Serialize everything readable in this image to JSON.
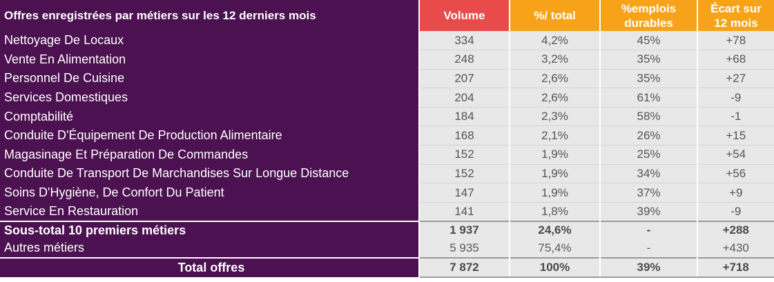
{
  "header": {
    "title": "Offres enregistrées par métiers sur les 12 derniers mois",
    "col_volume": "Volume",
    "col_pct_total": "%/ total",
    "col_durables_line1": "%emplois",
    "col_durables_line2": "durables",
    "col_ecart_line1": "Écart sur",
    "col_ecart_line2": "12 mois"
  },
  "rows": [
    {
      "metier": "Nettoyage De Locaux",
      "volume": "334",
      "pct_total": "4,2%",
      "durables": "45%",
      "ecart": "+78"
    },
    {
      "metier": "Vente En Alimentation",
      "volume": "248",
      "pct_total": "3,2%",
      "durables": "35%",
      "ecart": "+68"
    },
    {
      "metier": "Personnel De Cuisine",
      "volume": "207",
      "pct_total": "2,6%",
      "durables": "35%",
      "ecart": "+27"
    },
    {
      "metier": "Services Domestiques",
      "volume": "204",
      "pct_total": "2,6%",
      "durables": "61%",
      "ecart": "-9"
    },
    {
      "metier": "Comptabilité",
      "volume": "184",
      "pct_total": "2,3%",
      "durables": "58%",
      "ecart": "-1"
    },
    {
      "metier": "Conduite D'Équipement De Production Alimentaire",
      "volume": "168",
      "pct_total": "2,1%",
      "durables": "26%",
      "ecart": "+15"
    },
    {
      "metier": "Magasinage Et Préparation De Commandes",
      "volume": "152",
      "pct_total": "1,9%",
      "durables": "25%",
      "ecart": "+54"
    },
    {
      "metier": "Conduite De Transport De Marchandises Sur Longue Distance",
      "volume": "152",
      "pct_total": "1,9%",
      "durables": "34%",
      "ecart": "+56"
    },
    {
      "metier": "Soins D'Hygiène, De Confort Du Patient",
      "volume": "147",
      "pct_total": "1,9%",
      "durables": "37%",
      "ecart": "+9"
    },
    {
      "metier": "Service En Restauration",
      "volume": "141",
      "pct_total": "1,8%",
      "durables": "39%",
      "ecart": "-9"
    }
  ],
  "subtotal": {
    "metier": "Sous-total 10 premiers métiers",
    "volume": "1 937",
    "pct_total": "24,6%",
    "durables": "-",
    "ecart": "+288"
  },
  "autres": {
    "metier": "Autres métiers",
    "volume": "5 935",
    "pct_total": "75,4%",
    "durables": "-",
    "ecart": "+430"
  },
  "total": {
    "metier": "Total offres",
    "volume": "7 872",
    "pct_total": "100%",
    "durables": "39%",
    "ecart": "+718"
  }
}
